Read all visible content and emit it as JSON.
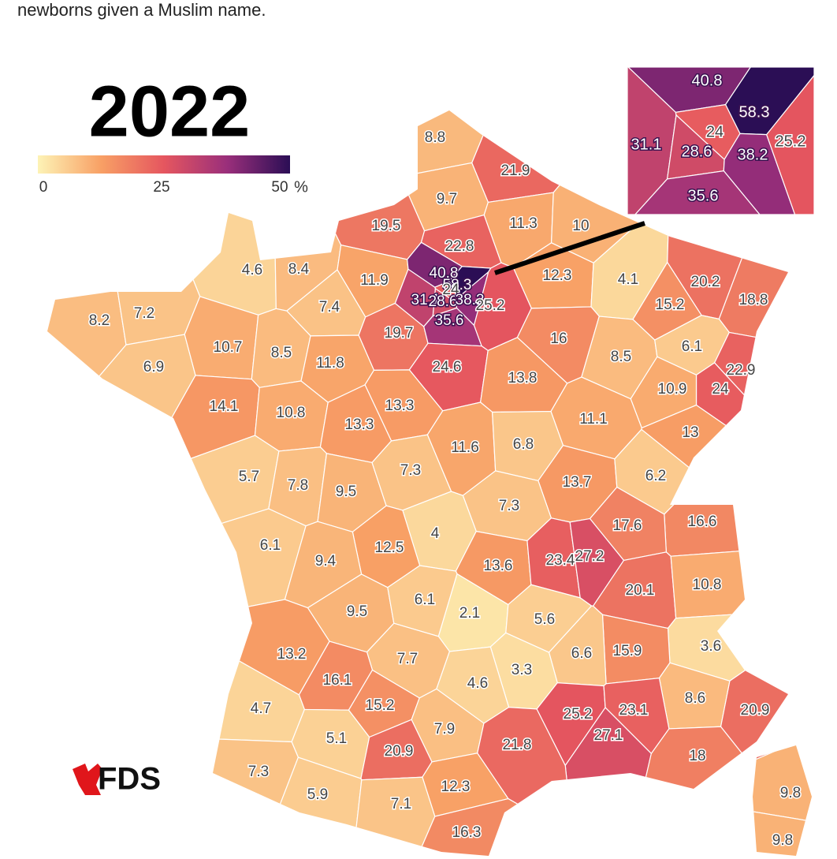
{
  "header": {
    "text": "newborns given a Muslim name."
  },
  "map": {
    "type": "choropleth",
    "year": "2022",
    "values": [
      8.8,
      21.9,
      9.7,
      19.5,
      11.3,
      10,
      22.8,
      4.6,
      8.4,
      11.9,
      40.8,
      58.3,
      12.3,
      4.1,
      20.2,
      18.8,
      15.2,
      8.2,
      7.2,
      7.4,
      19.7,
      31.1,
      28.6,
      24,
      38.2,
      25.2,
      35.6,
      16,
      10.7,
      8.5,
      11.8,
      6.9,
      8.5,
      6.1,
      24.6,
      13.8,
      22.9,
      24,
      10.9,
      14.1,
      10.8,
      13.3,
      13.3,
      11.1,
      13,
      11.6,
      6.8,
      5.7,
      7.8,
      9.5,
      7.3,
      13.7,
      6.2,
      7.3,
      16.6,
      17.6,
      4,
      6.1,
      12.5,
      9.4,
      13.6,
      23.4,
      27.2,
      20.1,
      10.8,
      9.5,
      6.1,
      2.1,
      5.6,
      3.6,
      13.2,
      15.9,
      6.6,
      7.7,
      16.1,
      3.3,
      4.6,
      8.6,
      4.7,
      15.2,
      25.2,
      23.1,
      20.9,
      7.9,
      5.1,
      20.9,
      27.1,
      21.8,
      18,
      7.3,
      5.9,
      12.3,
      7.1,
      16.3,
      9.8,
      9.8
    ],
    "inset_values": [
      40.8,
      58.3,
      31.1,
      24,
      28.6,
      38.2,
      25.2,
      35.6
    ]
  },
  "legend": {
    "ticks": [
      0,
      25,
      50
    ],
    "unit": "%",
    "colors": [
      "#fdf3b6",
      "#f8a065",
      "#e5565f",
      "#9a2f7b",
      "#2b0e55"
    ]
  },
  "logo": {
    "text": "FDS"
  }
}
